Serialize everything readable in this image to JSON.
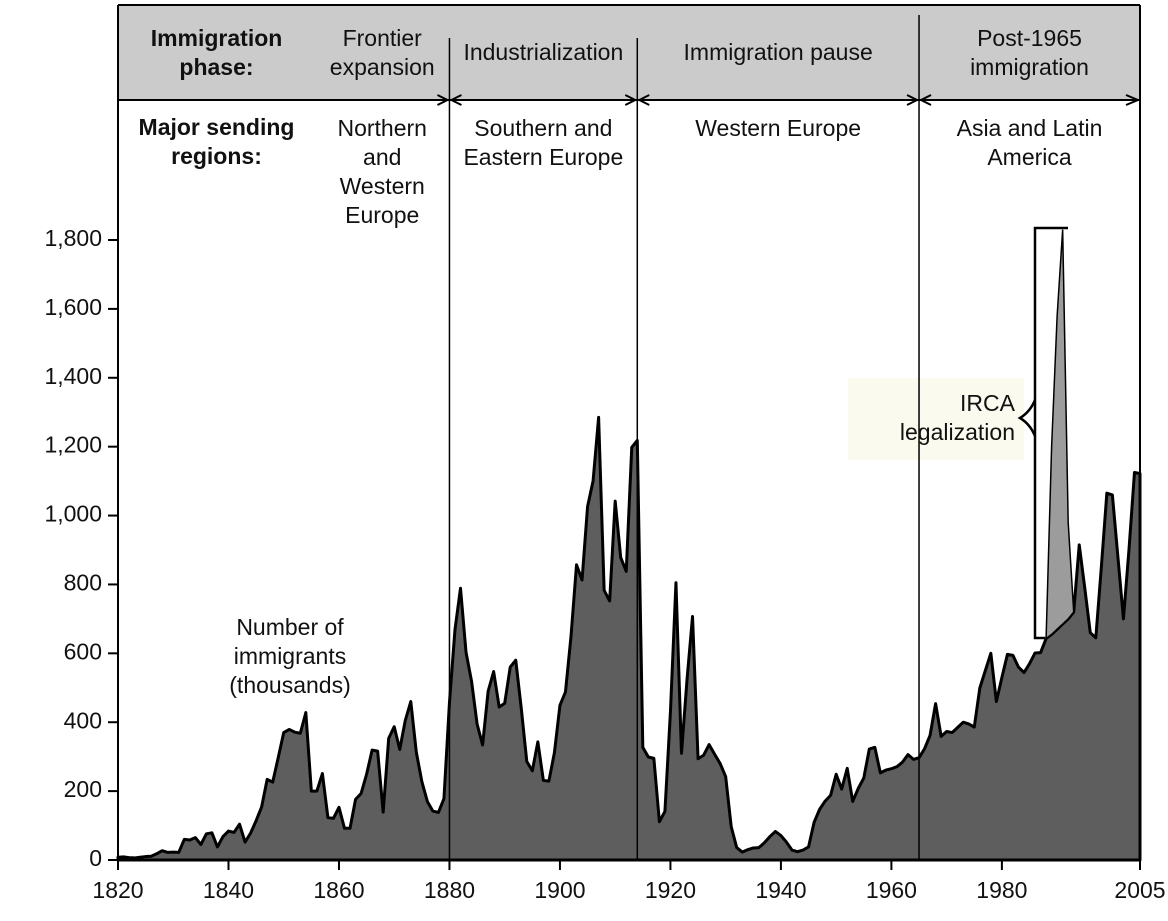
{
  "chart_data": {
    "type": "area",
    "phase_label": "Immigration phase:",
    "region_label": "Major sending regions:",
    "phases": [
      {
        "name": "Frontier expansion",
        "region": "Northern and Western Europe",
        "start": 1820,
        "end": 1880
      },
      {
        "name": "Industrialization",
        "region": "Southern and Eastern Europe",
        "start": 1880,
        "end": 1914
      },
      {
        "name": "Immigration pause",
        "region": "Western Europe",
        "start": 1914,
        "end": 1965
      },
      {
        "name": "Post-1965 immigration",
        "region": "Asia and Latin America",
        "start": 1965,
        "end": 2005
      }
    ],
    "x": [
      1820,
      1821,
      1822,
      1823,
      1824,
      1825,
      1826,
      1827,
      1828,
      1829,
      1830,
      1831,
      1832,
      1833,
      1834,
      1835,
      1836,
      1837,
      1838,
      1839,
      1840,
      1841,
      1842,
      1843,
      1844,
      1845,
      1846,
      1847,
      1848,
      1849,
      1850,
      1851,
      1852,
      1853,
      1854,
      1855,
      1856,
      1857,
      1858,
      1859,
      1860,
      1861,
      1862,
      1863,
      1864,
      1865,
      1866,
      1867,
      1868,
      1869,
      1870,
      1871,
      1872,
      1873,
      1874,
      1875,
      1876,
      1877,
      1878,
      1879,
      1880,
      1881,
      1882,
      1883,
      1884,
      1885,
      1886,
      1887,
      1888,
      1889,
      1890,
      1891,
      1892,
      1893,
      1894,
      1895,
      1896,
      1897,
      1898,
      1899,
      1900,
      1901,
      1902,
      1903,
      1904,
      1905,
      1906,
      1907,
      1908,
      1909,
      1910,
      1911,
      1912,
      1913,
      1914,
      1915,
      1916,
      1917,
      1918,
      1919,
      1920,
      1921,
      1922,
      1923,
      1924,
      1925,
      1926,
      1927,
      1928,
      1929,
      1930,
      1931,
      1932,
      1933,
      1934,
      1935,
      1936,
      1937,
      1938,
      1939,
      1940,
      1941,
      1942,
      1943,
      1944,
      1945,
      1946,
      1947,
      1948,
      1949,
      1950,
      1951,
      1952,
      1953,
      1954,
      1955,
      1956,
      1957,
      1958,
      1959,
      1960,
      1961,
      1962,
      1963,
      1964,
      1965,
      1966,
      1967,
      1968,
      1969,
      1970,
      1971,
      1972,
      1973,
      1974,
      1975,
      1976,
      1977,
      1978,
      1979,
      1980,
      1981,
      1982,
      1983,
      1984,
      1985,
      1986,
      1987,
      1988,
      1989,
      1990,
      1991,
      1992,
      1993,
      1994,
      1995,
      1996,
      1997,
      1998,
      1999,
      2000,
      2001,
      2002,
      2003,
      2004,
      2005
    ],
    "series": [
      {
        "name": "Number of immigrants (thousands)",
        "color": "#5e5e5e",
        "values": [
          8,
          9,
          7,
          6,
          8,
          10,
          11,
          18,
          27,
          22,
          23,
          22,
          60,
          58,
          65,
          45,
          76,
          79,
          38,
          68,
          84,
          80,
          104,
          52,
          78,
          114,
          154,
          234,
          226,
          297,
          370,
          379,
          371,
          368,
          428,
          200,
          200,
          251,
          123,
          121,
          153,
          92,
          92,
          176,
          193,
          249,
          319,
          316,
          139,
          353,
          387,
          321,
          405,
          460,
          313,
          228,
          170,
          142,
          138,
          178,
          457,
          669,
          789,
          603,
          519,
          395,
          334,
          490,
          547,
          444,
          455,
          560,
          580,
          440,
          286,
          259,
          343,
          231,
          229,
          312,
          449,
          488,
          649,
          857,
          813,
          1026,
          1101,
          1285,
          783,
          752,
          1042,
          878,
          838,
          1198,
          1218,
          327,
          299,
          295,
          111,
          141,
          430,
          805,
          310,
          523,
          707,
          294,
          304,
          335,
          307,
          280,
          242,
          97,
          36,
          23,
          30,
          35,
          36,
          50,
          68,
          83,
          71,
          52,
          29,
          24,
          29,
          38,
          109,
          147,
          171,
          188,
          249,
          206,
          266,
          170,
          208,
          238,
          322,
          327,
          253,
          261,
          265,
          271,
          284,
          306,
          292,
          297,
          323,
          362,
          454,
          359,
          373,
          370,
          385,
          400,
          395,
          386,
          499,
          550,
          600,
          460,
          530,
          597,
          594,
          560,
          544,
          570,
          601,
          602,
          643,
          655,
          670,
          685,
          700,
          720,
          915,
          790,
          660,
          645,
          850,
          1065,
          1060,
          880,
          700,
          900,
          1125,
          1122
        ]
      },
      {
        "name": "IRCA legalization",
        "color": "#9c9c9c",
        "stacked_on": 0,
        "x": [
          1988,
          1989,
          1990,
          1991,
          1992,
          1993
        ],
        "values": [
          0,
          545,
          910,
          1145,
          280,
          0
        ]
      }
    ],
    "xlim": [
      1820,
      2005
    ],
    "xticks": [
      1820,
      1840,
      1860,
      1880,
      1900,
      1920,
      1940,
      1960,
      1980,
      2005
    ],
    "ylim": [
      0,
      1800
    ],
    "yticks": [
      0,
      200,
      400,
      600,
      800,
      {
        "value": 1000,
        "label": "1,000"
      },
      {
        "value": 1200,
        "label": "1,200"
      },
      {
        "value": 1400,
        "label": "1,400"
      },
      {
        "value": 1600,
        "label": "1,600"
      },
      {
        "value": 1800,
        "label": "1,800"
      }
    ]
  }
}
